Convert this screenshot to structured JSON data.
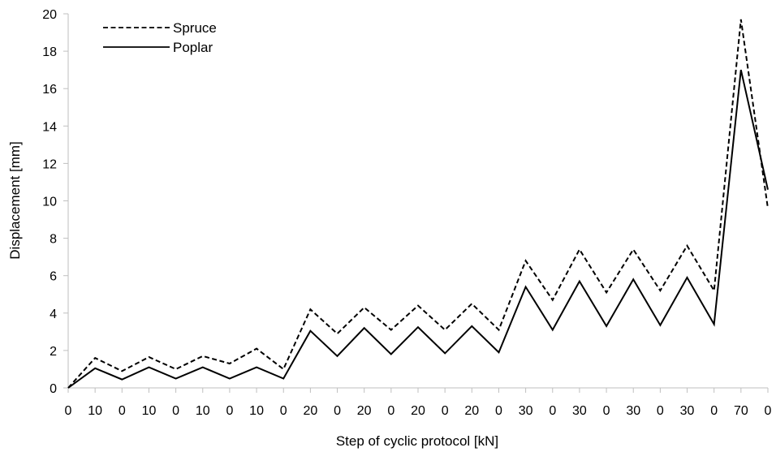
{
  "chart_data": {
    "type": "line",
    "xlabel": "Step of cyclic protocol [kN]",
    "ylabel": "Displacement [mm]",
    "ylim": [
      0,
      20
    ],
    "yticks": [
      0,
      2,
      4,
      6,
      8,
      10,
      12,
      14,
      16,
      18,
      20
    ],
    "categories": [
      "0",
      "10",
      "0",
      "10",
      "0",
      "10",
      "0",
      "10",
      "0",
      "20",
      "0",
      "20",
      "0",
      "20",
      "0",
      "20",
      "0",
      "30",
      "0",
      "30",
      "0",
      "30",
      "0",
      "30",
      "0",
      "70",
      "0"
    ],
    "grid": false,
    "legend_position": "top-left",
    "series": [
      {
        "name": "Spruce",
        "style": "dashed",
        "color": "#000000",
        "values": [
          0,
          1.6,
          0.9,
          1.65,
          1.0,
          1.7,
          1.3,
          2.1,
          1.0,
          4.2,
          2.9,
          4.3,
          3.1,
          4.4,
          3.1,
          4.5,
          3.1,
          6.8,
          4.7,
          7.4,
          5.1,
          7.4,
          5.2,
          7.6,
          5.2,
          19.7,
          9.6
        ]
      },
      {
        "name": "Poplar",
        "style": "solid",
        "color": "#000000",
        "values": [
          0,
          1.05,
          0.45,
          1.1,
          0.5,
          1.1,
          0.5,
          1.1,
          0.5,
          3.05,
          1.7,
          3.2,
          1.8,
          3.25,
          1.85,
          3.3,
          1.9,
          5.4,
          3.1,
          5.7,
          3.3,
          5.8,
          3.35,
          5.9,
          3.4,
          17.0,
          10.6
        ]
      }
    ]
  }
}
